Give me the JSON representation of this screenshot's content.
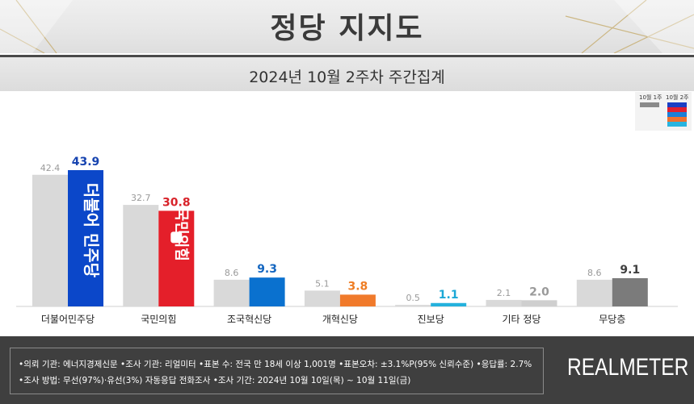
{
  "header": {
    "title": "정당 지지도",
    "subtitle": "2024년 10월 2주차 주간집계"
  },
  "legend": {
    "prev_label": "10월 1주",
    "curr_label": "10월 2주",
    "prev_color": "#8a8a8a",
    "curr_colors": [
      "#1a3fc4",
      "#e02030",
      "#1a7fd8",
      "#f07030",
      "#28b4e0"
    ]
  },
  "chart_data": {
    "type": "bar",
    "title": "정당 지지도",
    "subtitle": "2024년 10월 2주차 주간집계",
    "categories": [
      "더불어민주당",
      "국민의힘",
      "조국혁신당",
      "개혁신당",
      "진보당",
      "기타 정당",
      "무당층"
    ],
    "series": [
      {
        "name": "10월 1주",
        "values": [
          42.4,
          32.7,
          8.6,
          5.1,
          0.5,
          2.1,
          8.6
        ]
      },
      {
        "name": "10월 2주",
        "values": [
          43.9,
          30.8,
          9.3,
          3.8,
          1.1,
          2.0,
          9.1
        ]
      }
    ],
    "colors": {
      "prev": "#d9d9d9",
      "current": [
        "#0b47c9",
        "#e41f2a",
        "#0a71cf",
        "#f07a2b",
        "#24b1dd",
        "#cfcfcf",
        "#7b7b7b"
      ],
      "current_labels": [
        "#1744b0",
        "#d8232a",
        "#1466c0",
        "#ef7d24",
        "#1ba8d6",
        "#9a9a9a",
        "#3f3f3f"
      ]
    },
    "ylim": [
      0,
      50
    ],
    "xlabel": "",
    "ylabel": "",
    "grid": false,
    "legend_position": "top-right",
    "bar_overlays": {
      "더불어민주당": "더불어 민주당",
      "국민의힘": "국민의힘"
    }
  },
  "footer": {
    "line1": "•의뢰 기관: 에너지경제신문  •조사 기관: 리얼미터 •표본 수: 전국 만 18세 이상 1,001명 •표본오차: ±3.1%P(95% 신뢰수준) •응답률: 2.7%",
    "line2": "•조사 방법: 무선(97%)·유선(3%) 자동응답 전화조사 •조사 기간: 2024년 10월 10일(목) ~ 10월 11일(금)",
    "logo": "REALMETER"
  }
}
